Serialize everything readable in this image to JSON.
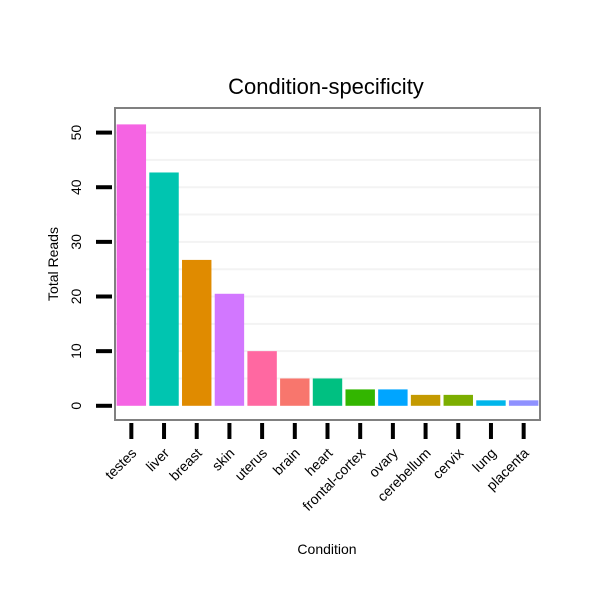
{
  "chart_data": {
    "type": "bar",
    "title": "Condition-specificity",
    "xlabel": "Condition",
    "ylabel": "Total Reads",
    "categories": [
      "testes",
      "liver",
      "breast",
      "skin",
      "uterus",
      "brain",
      "heart",
      "frontal-cortex",
      "ovary",
      "cerebellum",
      "cervix",
      "lung",
      "placenta"
    ],
    "values": [
      51.5,
      42.7,
      26.7,
      20.5,
      10,
      5,
      5,
      3,
      3,
      2,
      2,
      1,
      1
    ],
    "colors": [
      "#F564E3",
      "#00C5B0",
      "#E08B00",
      "#D277FF",
      "#FF68A1",
      "#F8766D",
      "#00C081",
      "#33B600",
      "#00A5FF",
      "#C49A00",
      "#7CAE00",
      "#00B6EB",
      "#8F91FF"
    ],
    "yticks": [
      0,
      10,
      20,
      30,
      40,
      50
    ],
    "ylim": [
      -2.6,
      54.5
    ],
    "grid": true,
    "legend": "none"
  }
}
